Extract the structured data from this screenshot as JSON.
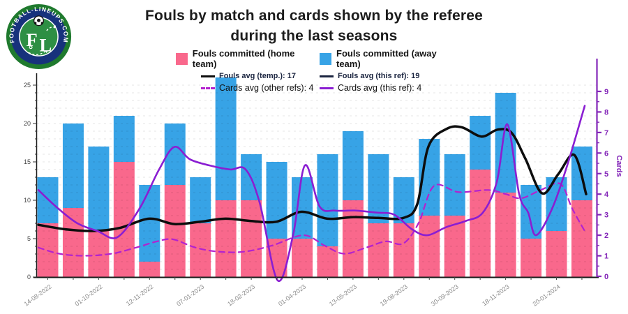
{
  "logo": {
    "site_text": "FOOTBALL-LINEUPS.COM",
    "letter_f": "F",
    "letter_l": "L"
  },
  "title": {
    "line1": "Fouls by match and cards shown by the referee",
    "line2": "during the last seasons"
  },
  "legend": {
    "rows": [
      {
        "items": [
          {
            "swatch": "bar",
            "color": "#f9688c",
            "label": "Fouls committed (home team)"
          },
          {
            "swatch": "bar",
            "color": "#37a3e6",
            "label": "Fouls committed (away team)"
          }
        ]
      },
      {
        "items": [
          {
            "swatch": "line",
            "color": "#0d0d0d",
            "label": "Fouls avg (temp.): 17"
          },
          {
            "swatch": "line",
            "color": "#1b2540",
            "label": "Fouls avg (this ref): 19"
          }
        ]
      },
      {
        "items": [
          {
            "swatch": "dash",
            "color": "#b322cf",
            "label": "Cards avg (other refs): 4"
          },
          {
            "swatch": "line",
            "color": "#8a1ed2",
            "label": "Cards avg (this ref): 4"
          }
        ]
      }
    ]
  },
  "chart_data": {
    "type": "stacked-bar + line combo",
    "x_labels": [
      "14-08-2022",
      "01-10-2022",
      "12-11-2022",
      "07-01-2023",
      "18-02-2023",
      "01-04-2023",
      "13-05-2023",
      "19-08-2023",
      "30-09-2023",
      "18-11-2023",
      "20-01-2024"
    ],
    "x_labels_every_n_bars": 2,
    "bars": {
      "home_label": "Fouls committed (home team)",
      "away_label": "Fouls committed (away team)",
      "home_color": "#f9688c",
      "away_color": "#37a3e6",
      "home_fouls": [
        7,
        9,
        6,
        15,
        2,
        12,
        7,
        10,
        10,
        5,
        5,
        4,
        10,
        7,
        7,
        8,
        8,
        14,
        11,
        5,
        6,
        10
      ],
      "away_fouls": [
        6,
        11,
        11,
        6,
        10,
        8,
        6,
        16,
        6,
        10,
        8,
        12,
        9,
        9,
        6,
        10,
        8,
        7,
        13,
        7,
        7,
        7
      ]
    },
    "series": [
      {
        "name": "fouls-avg-temp",
        "label": "Fouls avg (temp.)",
        "axis": "left",
        "style": "solid",
        "color": "#0d0d0d",
        "width": 3.5,
        "points": [
          [
            55,
            6.8
          ],
          [
            95,
            6.2
          ],
          [
            135,
            6.0
          ],
          [
            172,
            6.4
          ],
          [
            214,
            7.6
          ],
          [
            250,
            6.9
          ],
          [
            287,
            7.2
          ],
          [
            323,
            7.6
          ],
          [
            360,
            7.3
          ],
          [
            396,
            7.2
          ],
          [
            432,
            8.5
          ],
          [
            469,
            7.6
          ],
          [
            505,
            7.8
          ],
          [
            542,
            7.7
          ],
          [
            578,
            7.7
          ],
          [
            598,
            9.5
          ],
          [
            614,
            17.0
          ],
          [
            640,
            19.3
          ],
          [
            662,
            19.5
          ],
          [
            690,
            18.3
          ],
          [
            713,
            19.2
          ],
          [
            733,
            18.8
          ],
          [
            753,
            15.4
          ],
          [
            777,
            10.9
          ],
          [
            800,
            13.4
          ],
          [
            823,
            15.9
          ],
          [
            840,
            10.8
          ]
        ]
      },
      {
        "name": "cards-avg-other-refs",
        "label": "Cards avg (other refs)",
        "axis": "right",
        "style": "dashed",
        "color": "#b322cf",
        "width": 2.2,
        "points": [
          [
            55,
            1.4
          ],
          [
            85,
            1.1
          ],
          [
            120,
            1.0
          ],
          [
            160,
            1.1
          ],
          [
            195,
            1.4
          ],
          [
            225,
            1.7
          ],
          [
            248,
            1.8
          ],
          [
            280,
            1.4
          ],
          [
            313,
            1.2
          ],
          [
            350,
            1.2
          ],
          [
            390,
            1.5
          ],
          [
            435,
            2.0
          ],
          [
            465,
            1.5
          ],
          [
            493,
            1.1
          ],
          [
            525,
            1.4
          ],
          [
            553,
            1.7
          ],
          [
            578,
            1.6
          ],
          [
            600,
            2.6
          ],
          [
            622,
            4.4
          ],
          [
            657,
            4.1
          ],
          [
            700,
            4.2
          ],
          [
            725,
            4.0
          ],
          [
            747,
            3.8
          ],
          [
            775,
            4.2
          ],
          [
            803,
            4.5
          ],
          [
            820,
            3.3
          ],
          [
            838,
            2.2
          ]
        ]
      },
      {
        "name": "cards-avg-this-ref",
        "label": "Cards avg (this ref)",
        "axis": "right",
        "style": "solid",
        "color": "#8a1ed2",
        "width": 2.6,
        "points": [
          [
            55,
            4.2
          ],
          [
            80,
            3.4
          ],
          [
            110,
            2.6
          ],
          [
            140,
            2.2
          ],
          [
            168,
            1.9
          ],
          [
            200,
            3.3
          ],
          [
            228,
            5.2
          ],
          [
            250,
            6.3
          ],
          [
            272,
            5.7
          ],
          [
            300,
            5.4
          ],
          [
            330,
            5.2
          ],
          [
            352,
            5.2
          ],
          [
            372,
            3.6
          ],
          [
            398,
            -0.2
          ],
          [
            420,
            2.0
          ],
          [
            437,
            5.4
          ],
          [
            458,
            3.4
          ],
          [
            480,
            3.2
          ],
          [
            510,
            3.2
          ],
          [
            540,
            3.1
          ],
          [
            565,
            3.0
          ],
          [
            590,
            2.3
          ],
          [
            612,
            2.0
          ],
          [
            640,
            2.4
          ],
          [
            668,
            2.7
          ],
          [
            692,
            3.1
          ],
          [
            712,
            4.6
          ],
          [
            727,
            7.4
          ],
          [
            744,
            4.0
          ],
          [
            757,
            3.1
          ],
          [
            768,
            2.0
          ],
          [
            790,
            3.2
          ],
          [
            812,
            5.3
          ],
          [
            838,
            8.3
          ]
        ]
      }
    ],
    "left_axis": {
      "min": 0,
      "max": 25,
      "tick_step": 1,
      "label_step": 5,
      "color": "#1a1a1a"
    },
    "right_axis": {
      "min": 0,
      "max": 9,
      "tick_step": 1,
      "label_step": 1,
      "title": "Cards",
      "color": "#8326b8"
    },
    "grid": true,
    "x_label_color": "#8a8a8a"
  }
}
